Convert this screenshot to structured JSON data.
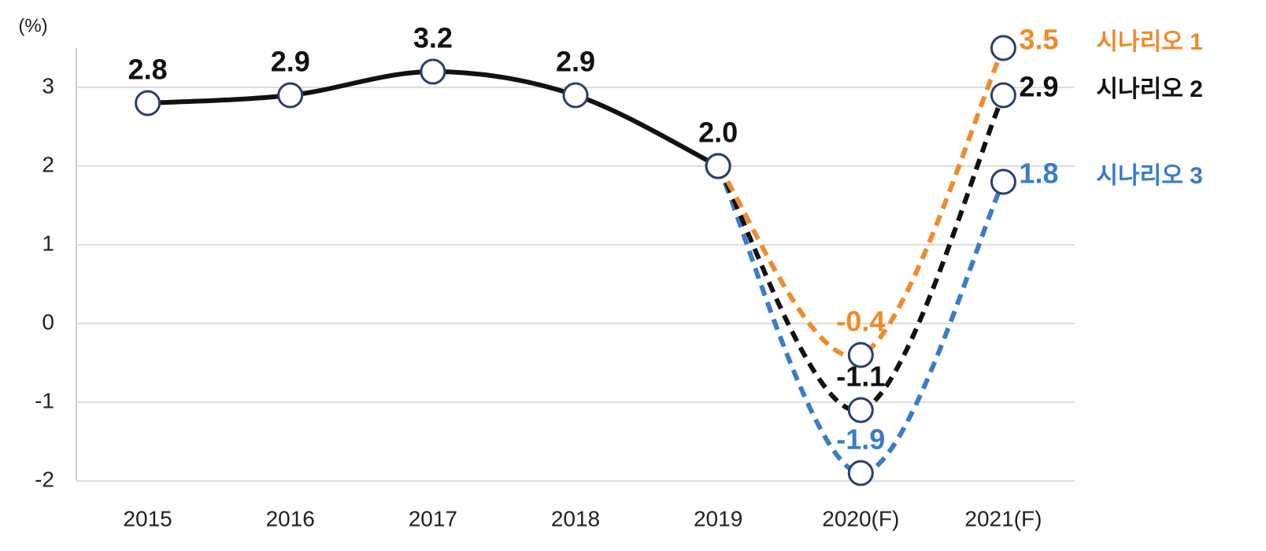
{
  "chart_data": {
    "type": "line",
    "y_label": "(%)",
    "categories": [
      "2015",
      "2016",
      "2017",
      "2018",
      "2019",
      "2020(F)",
      "2021(F)"
    ],
    "series": [
      {
        "color": "#111111",
        "dashed": false,
        "values": [
          2.8,
          2.9,
          3.2,
          2.9,
          2.0,
          null,
          null
        ],
        "value_labels": [
          "2.8",
          "2.9",
          "3.2",
          "2.9",
          "2.0",
          null,
          null
        ]
      },
      {
        "name": "시나리오 1",
        "color": "#f08a2b",
        "dashed": true,
        "values": [
          null,
          null,
          null,
          null,
          2.0,
          -0.4,
          3.5
        ],
        "value_labels": [
          null,
          null,
          null,
          null,
          null,
          "-0.4",
          "3.5"
        ]
      },
      {
        "name": "시나리오 2",
        "color": "#111111",
        "dashed": true,
        "values": [
          null,
          null,
          null,
          null,
          2.0,
          -1.1,
          2.9
        ],
        "value_labels": [
          null,
          null,
          null,
          null,
          null,
          "-1.1",
          "2.9"
        ]
      },
      {
        "name": "시나리오 3",
        "color": "#3a7cc8",
        "dashed": true,
        "values": [
          null,
          null,
          null,
          null,
          2.0,
          -1.9,
          1.8
        ],
        "value_labels": [
          null,
          null,
          null,
          null,
          null,
          "-1.9",
          "1.8"
        ]
      }
    ],
    "ylim": [
      -2,
      3.5
    ],
    "yticks": [
      -2,
      -1,
      0,
      1,
      2,
      3
    ],
    "grid": true,
    "marker_stroke": "#2b3f6b"
  }
}
